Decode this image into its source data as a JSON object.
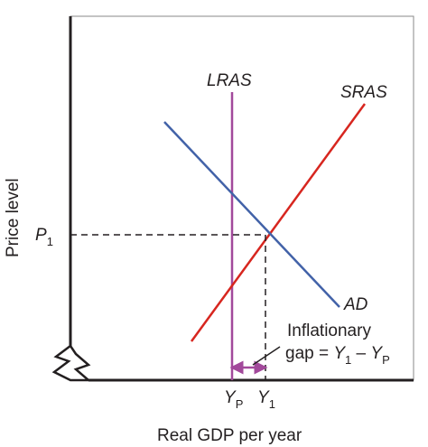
{
  "diagram": {
    "curves": {
      "lras": "LRAS",
      "sras": "SRAS",
      "ad": "AD"
    },
    "axis": {
      "y_label": "Price level",
      "x_label": "Real GDP per year",
      "p1": {
        "letter": "P",
        "sub": "1"
      },
      "yp": {
        "letter": "Y",
        "sub": "P"
      },
      "y1": {
        "letter": "Y",
        "sub": "1"
      }
    },
    "gap": {
      "line1": "Inflationary",
      "line2_word": "gap = ",
      "y1_letter": "Y",
      "y1_sub": "1",
      "minus": " – ",
      "yp_letter": "Y",
      "yp_sub": "P"
    },
    "colors": {
      "lras": "#a2499b",
      "sras": "#d7261f",
      "ad": "#4262a8",
      "axis": "#231f20",
      "gap_arrow": "#a2499b"
    }
  }
}
